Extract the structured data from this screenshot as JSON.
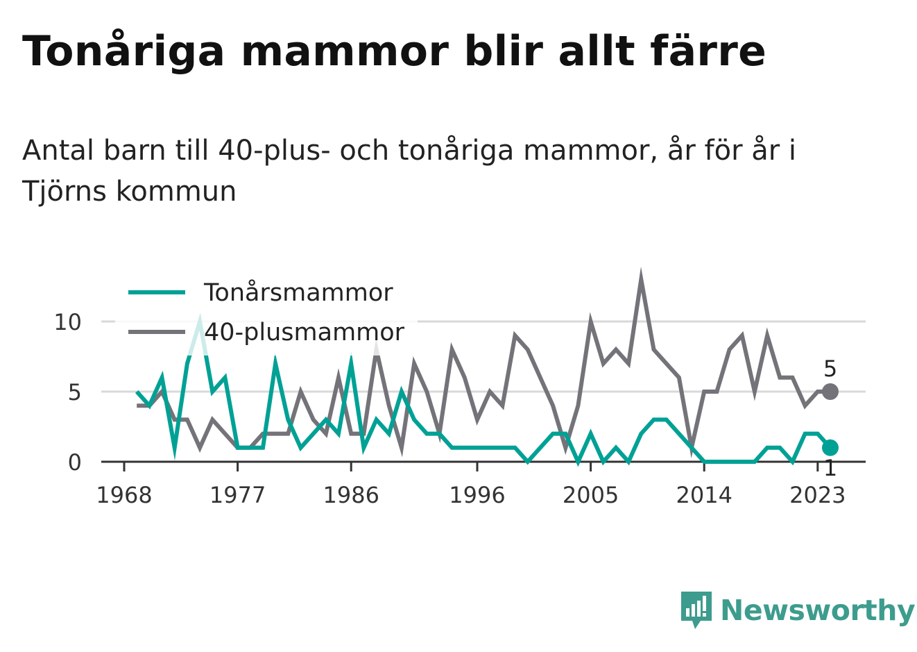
{
  "title": "Tonåriga mammor blir allt färre",
  "subtitle": "Antal barn till 40-plus- och tonåriga mammor, år för år i Tjörns kommun",
  "brand": "Newsworthy",
  "colors": {
    "teen": "#00a195",
    "forty_plus": "#737379",
    "grid": "#d9d9d9",
    "axis": "#333333",
    "brand": "#3d9c8d"
  },
  "chart_data": {
    "type": "line",
    "title": "Tonåriga mammor blir allt färre",
    "subtitle": "Antal barn till 40-plus- och tonåriga mammor, år för år i Tjörns kommun",
    "xlabel": "",
    "ylabel": "",
    "x": [
      1969,
      1970,
      1971,
      1972,
      1973,
      1974,
      1975,
      1976,
      1977,
      1978,
      1979,
      1980,
      1981,
      1982,
      1983,
      1984,
      1985,
      1986,
      1987,
      1988,
      1989,
      1990,
      1991,
      1992,
      1993,
      1994,
      1995,
      1996,
      1997,
      1998,
      1999,
      2000,
      2001,
      2002,
      2003,
      2004,
      2005,
      2006,
      2007,
      2008,
      2009,
      2010,
      2011,
      2012,
      2013,
      2014,
      2015,
      2016,
      2017,
      2018,
      2019,
      2020,
      2021,
      2022,
      2023,
      2024
    ],
    "xticks": [
      1968,
      1977,
      1986,
      1996,
      2005,
      2014,
      2023
    ],
    "xlim": [
      1968,
      2025
    ],
    "yticks": [
      0,
      5,
      10
    ],
    "ylim": [
      0,
      13
    ],
    "grid": true,
    "legend_position": "top-left",
    "series": [
      {
        "name": "Tonårsmammor",
        "color": "#00a195",
        "values": [
          5,
          4,
          6,
          1,
          7,
          10,
          5,
          6,
          1,
          1,
          1,
          7,
          3,
          1,
          2,
          3,
          2,
          7,
          1,
          3,
          2,
          5,
          3,
          2,
          2,
          1,
          1,
          1,
          1,
          1,
          1,
          0,
          1,
          2,
          2,
          0,
          2,
          0,
          1,
          0,
          2,
          3,
          3,
          2,
          1,
          0,
          0,
          0,
          0,
          0,
          1,
          1,
          0,
          2,
          2,
          1
        ],
        "end_label": "1"
      },
      {
        "name": "40-plusmammor",
        "color": "#737379",
        "values": [
          4,
          4,
          5,
          3,
          3,
          1,
          3,
          2,
          1,
          1,
          2,
          2,
          2,
          5,
          3,
          2,
          6,
          2,
          2,
          8,
          4,
          1,
          7,
          5,
          2,
          8,
          6,
          3,
          5,
          4,
          9,
          8,
          6,
          4,
          1,
          4,
          10,
          7,
          8,
          7,
          13,
          8,
          7,
          6,
          1,
          5,
          5,
          8,
          9,
          5,
          9,
          6,
          6,
          4,
          5,
          5
        ],
        "end_label": "5"
      }
    ]
  }
}
